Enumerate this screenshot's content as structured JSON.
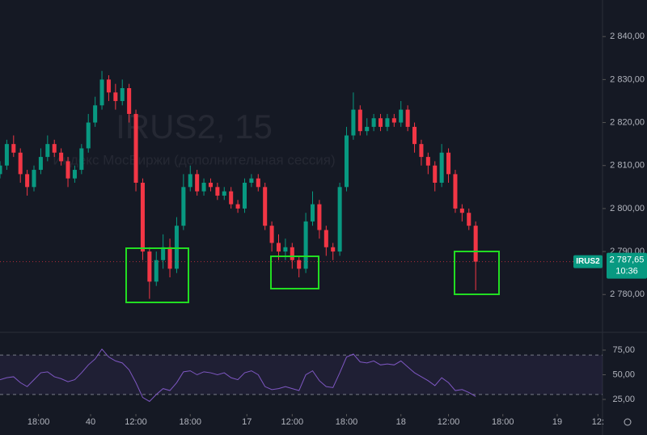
{
  "chart_data": [
    {
      "type": "candlestick",
      "watermark": "IRUS2, 15",
      "watermark_subtitle": "Индекс МосБиржи (дополнительная сессия)",
      "symbol": "IRUS2",
      "last_price": {
        "value": 2787.65,
        "label": "2 787,65"
      },
      "countdown": "10:36",
      "up_color": "#089981",
      "down_color": "#f23645",
      "x": [
        0,
        3,
        6,
        9,
        12,
        15,
        18,
        21,
        24,
        27,
        30,
        33,
        36,
        39,
        42,
        45,
        48,
        51,
        54,
        57,
        60,
        63,
        66,
        69,
        72,
        75,
        78,
        81,
        84,
        87,
        90,
        93,
        96,
        99,
        102,
        105,
        108,
        111,
        114,
        117,
        120,
        123,
        126,
        129,
        132,
        135,
        138,
        141,
        144,
        147,
        150,
        153,
        156,
        159,
        162,
        165,
        168,
        171,
        174,
        177,
        180,
        183,
        186,
        189,
        192,
        195,
        198,
        201,
        204,
        207,
        210
      ],
      "open": [
        2808,
        2810,
        2815,
        2813,
        2808,
        2805,
        2809,
        2812,
        2815,
        2813,
        2811,
        2807,
        2809,
        2814,
        2820,
        2824,
        2830,
        2827,
        2825,
        2828,
        2822,
        2806,
        2790,
        2783,
        2788,
        2791,
        2786,
        2796,
        2805,
        2808,
        2804,
        2806,
        2805,
        2803,
        2804,
        2801,
        2800,
        2806,
        2807,
        2805,
        2796,
        2792,
        2790,
        2791,
        2788,
        2786,
        2797,
        2801,
        2795,
        2791,
        2790,
        2805,
        2817,
        2823,
        2818,
        2819,
        2821,
        2819,
        2821,
        2820,
        2823,
        2819,
        2815,
        2812,
        2810,
        2806,
        2813,
        2808,
        2800,
        2799,
        2796
      ],
      "high": [
        2811,
        2816,
        2817,
        2814,
        2809,
        2810,
        2814,
        2817,
        2816,
        2814,
        2812,
        2810,
        2815,
        2822,
        2826,
        2832,
        2831,
        2829,
        2830,
        2829,
        2823,
        2807,
        2791,
        2790,
        2794,
        2793,
        2798,
        2808,
        2810,
        2809,
        2807,
        2807,
        2806,
        2805,
        2805,
        2802,
        2807,
        2808,
        2808,
        2806,
        2797,
        2794,
        2793,
        2792,
        2789,
        2799,
        2804,
        2802,
        2796,
        2792,
        2806,
        2819,
        2827,
        2824,
        2821,
        2822,
        2822,
        2822,
        2822,
        2825,
        2824,
        2820,
        2816,
        2813,
        2811,
        2815,
        2814,
        2809,
        2801,
        2800,
        2797
      ],
      "low": [
        2807,
        2809,
        2812,
        2806,
        2803,
        2804,
        2808,
        2811,
        2812,
        2810,
        2805,
        2806,
        2808,
        2813,
        2819,
        2823,
        2825,
        2823,
        2824,
        2820,
        2804,
        2788,
        2779,
        2782,
        2786,
        2784,
        2785,
        2795,
        2804,
        2803,
        2803,
        2804,
        2802,
        2802,
        2800,
        2799,
        2799,
        2805,
        2804,
        2795,
        2790,
        2788,
        2788,
        2786,
        2784,
        2785,
        2796,
        2793,
        2789,
        2788,
        2789,
        2804,
        2816,
        2817,
        2817,
        2818,
        2818,
        2818,
        2819,
        2819,
        2818,
        2813,
        2810,
        2808,
        2804,
        2805,
        2806,
        2799,
        2797,
        2795,
        2781
      ],
      "close": [
        2810,
        2815,
        2813,
        2808,
        2805,
        2809,
        2812,
        2815,
        2813,
        2811,
        2807,
        2809,
        2814,
        2820,
        2824,
        2830,
        2827,
        2825,
        2828,
        2822,
        2806,
        2790,
        2783,
        2788,
        2791,
        2786,
        2796,
        2805,
        2808,
        2804,
        2806,
        2805,
        2803,
        2804,
        2801,
        2800,
        2806,
        2807,
        2805,
        2796,
        2792,
        2790,
        2791,
        2788,
        2786,
        2797,
        2801,
        2795,
        2791,
        2790,
        2805,
        2817,
        2823,
        2818,
        2819,
        2821,
        2819,
        2821,
        2820,
        2823,
        2819,
        2815,
        2812,
        2810,
        2806,
        2813,
        2808,
        2800,
        2799,
        2796,
        2787.65
      ],
      "xlim": [
        0,
        266
      ],
      "ylim": [
        2771.4,
        2848.5
      ],
      "yticks": [
        {
          "value": 2780,
          "label": "2 780,00"
        },
        {
          "value": 2790,
          "label": "2 790,00"
        },
        {
          "value": 2800,
          "label": "2 800,00"
        },
        {
          "value": 2810,
          "label": "2 810,00"
        },
        {
          "value": 2820,
          "label": "2 820,00"
        },
        {
          "value": 2830,
          "label": "2 830,00"
        },
        {
          "value": 2840,
          "label": "2 840,00"
        }
      ]
    },
    {
      "type": "line",
      "color": "#7e57c2",
      "band": [
        30,
        70
      ],
      "x": [
        0,
        3,
        6,
        9,
        12,
        15,
        18,
        21,
        24,
        27,
        30,
        33,
        36,
        39,
        42,
        45,
        48,
        51,
        54,
        57,
        60,
        63,
        66,
        69,
        72,
        75,
        78,
        81,
        84,
        87,
        90,
        93,
        96,
        99,
        102,
        105,
        108,
        111,
        114,
        117,
        120,
        123,
        126,
        129,
        132,
        135,
        138,
        141,
        144,
        147,
        150,
        153,
        156,
        159,
        162,
        165,
        168,
        171,
        174,
        177,
        180,
        183,
        186,
        189,
        192,
        195,
        198,
        201,
        204,
        207,
        210
      ],
      "values": [
        45,
        47,
        48,
        42,
        38,
        45,
        52,
        53,
        48,
        46,
        43,
        45,
        52,
        60,
        66,
        76,
        68,
        64,
        62,
        55,
        42,
        27,
        23,
        30,
        36,
        34,
        42,
        53,
        54,
        50,
        53,
        52,
        50,
        52,
        47,
        45,
        52,
        54,
        50,
        38,
        35,
        36,
        38,
        36,
        34,
        50,
        54,
        44,
        38,
        37,
        52,
        68,
        71,
        63,
        62,
        64,
        60,
        61,
        60,
        64,
        58,
        52,
        48,
        44,
        39,
        47,
        42,
        34,
        35,
        32,
        28
      ],
      "xlim": [
        0,
        266
      ],
      "ylim": [
        11.9,
        92.2
      ],
      "yticks": [
        {
          "value": 25,
          "label": "25,00"
        },
        {
          "value": 50,
          "label": "50,00"
        },
        {
          "value": 75,
          "label": "75,00"
        }
      ],
      "xticks": [
        {
          "value": 17,
          "label": "18:00"
        },
        40,
        {
          "value": 60,
          "label": "12:00"
        },
        {
          "value": 84,
          "label": "18:00"
        },
        {
          "value": 109,
          "label": "17"
        },
        {
          "value": 129,
          "label": "12:00"
        },
        {
          "value": 153,
          "label": "18:00"
        },
        {
          "value": 177,
          "label": "18"
        },
        {
          "value": 198,
          "label": "12:00"
        },
        {
          "value": 222,
          "label": "18:00"
        },
        {
          "value": 246,
          "label": "19"
        },
        {
          "value": 264,
          "label": "12:"
        }
      ]
    }
  ]
}
